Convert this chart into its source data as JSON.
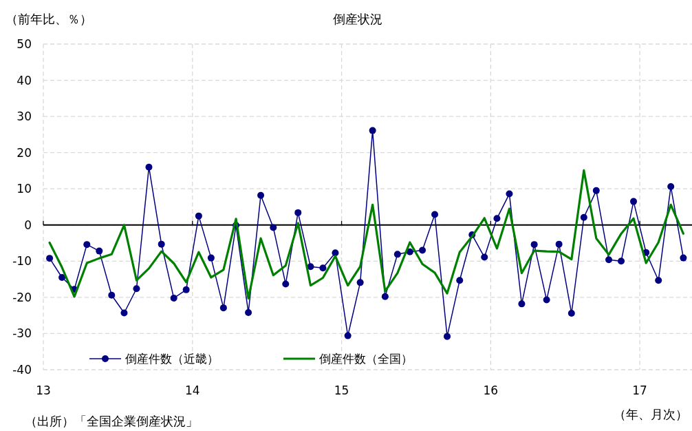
{
  "chart_data": {
    "type": "line",
    "title": "倒産状況",
    "ylabel": "（前年比、％）",
    "xlabel": "（年、月次）",
    "annotations": [
      "（出所）「全国企業倒産状況」"
    ],
    "x": [
      13.042,
      13.125,
      13.208,
      13.292,
      13.375,
      13.458,
      13.542,
      13.625,
      13.708,
      13.792,
      13.875,
      13.958,
      14.042,
      14.125,
      14.208,
      14.292,
      14.375,
      14.458,
      14.542,
      14.625,
      14.708,
      14.792,
      14.875,
      14.958,
      15.042,
      15.125,
      15.208,
      15.292,
      15.375,
      15.458,
      15.542,
      15.625,
      15.708,
      15.792,
      15.875,
      15.958,
      16.042,
      16.125,
      16.208,
      16.292,
      16.375,
      16.458,
      16.542,
      16.625,
      16.708,
      16.792,
      16.875,
      16.958,
      17.042,
      17.125,
      17.208,
      17.292
    ],
    "series": [
      {
        "name": "倒産件数（近畿）",
        "color": "#000080",
        "marker": "circle",
        "values": [
          -9.2,
          -14.5,
          -17.8,
          -5.4,
          -7.2,
          -19.4,
          -24.3,
          -17.6,
          16.0,
          -5.3,
          -20.2,
          -17.9,
          2.5,
          -9.1,
          -22.9,
          -0.1,
          -24.2,
          8.2,
          -0.7,
          -16.3,
          3.4,
          -11.5,
          -11.9,
          -7.7,
          -30.6,
          -15.9,
          26.1,
          -19.8,
          -8.1,
          -7.4,
          -7.0,
          2.9,
          -30.8,
          -15.3,
          -2.7,
          -8.9,
          1.8,
          8.6,
          -21.8,
          -5.4,
          -20.7,
          -5.3,
          -24.4,
          2.1,
          9.5,
          -9.6,
          -10.0,
          6.5,
          -7.6,
          -15.3,
          10.6,
          -9.1
        ]
      },
      {
        "name": "倒産件数（全国）",
        "color": "#008000",
        "marker": "none",
        "values": [
          -4.9,
          -11.7,
          -19.8,
          -10.5,
          -9.2,
          -8.1,
          0,
          -15.3,
          -12.0,
          -7.3,
          -10.6,
          -15.8,
          -7.5,
          -14.5,
          -12.4,
          1.7,
          -20.3,
          -3.7,
          -13.9,
          -11.2,
          0.5,
          -16.7,
          -14.6,
          -8.6,
          -16.7,
          -11.5,
          5.6,
          -18.3,
          -13.3,
          -4.8,
          -10.8,
          -13.2,
          -18.9,
          -7.5,
          -3.2,
          1.9,
          -6.5,
          4.5,
          -13.3,
          -7.1,
          -7.3,
          -7.4,
          -9.5,
          15.1,
          -3.7,
          -8.2,
          -2.4,
          1.8,
          -10.5,
          -4.8,
          5.6,
          -2.4
        ]
      }
    ],
    "xlim": [
      13,
      17.35
    ],
    "xticks": [
      13,
      14,
      15,
      16,
      17
    ],
    "ylim": [
      -40,
      50
    ],
    "yticks": [
      -40,
      -30,
      -20,
      -10,
      0,
      10,
      20,
      30,
      40,
      50
    ],
    "grid": true,
    "legend": "bottom left",
    "line_style": "solid"
  }
}
